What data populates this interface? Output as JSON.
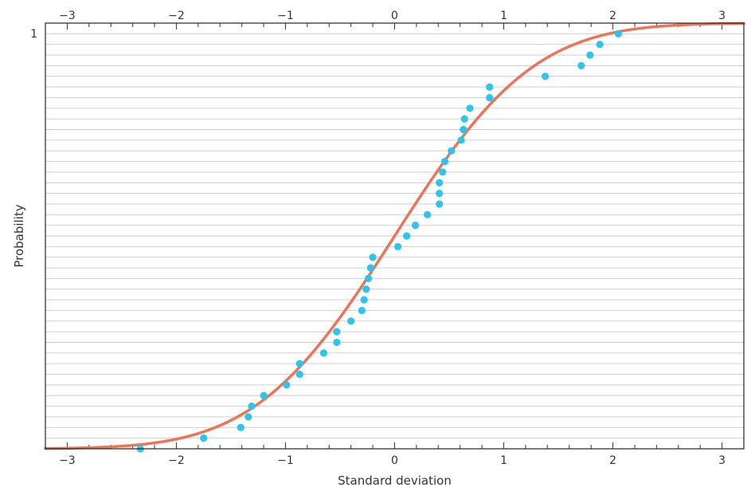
{
  "chart_data": {
    "type": "scatter",
    "title": "",
    "xlabel": "Standard deviation",
    "ylabel": "Probability",
    "xlim": [
      -3.2,
      3.2
    ],
    "ylim": [
      0,
      1
    ],
    "x_ticks": [
      -3,
      -2,
      -1,
      0,
      1,
      2,
      3
    ],
    "x_tick_labels": [
      "−3",
      "−2",
      "−1",
      "0",
      "1",
      "2",
      "3"
    ],
    "y_tick_labels": [
      "1"
    ],
    "gridlines": "horizontal",
    "gridline_count": 40,
    "legend": "none",
    "curve": {
      "type": "line",
      "description_function": "normal-cdf",
      "color": "#ec7458"
    },
    "points": {
      "color": "#2ec4ec",
      "values": [
        [
          -2.33,
          0.0
        ],
        [
          -1.75,
          0.025
        ],
        [
          -1.41,
          0.05
        ],
        [
          -1.34,
          0.075
        ],
        [
          -1.31,
          0.1
        ],
        [
          -1.2,
          0.125
        ],
        [
          -0.99,
          0.15
        ],
        [
          -0.87,
          0.175
        ],
        [
          -0.87,
          0.2
        ],
        [
          -0.65,
          0.225
        ],
        [
          -0.53,
          0.25
        ],
        [
          -0.53,
          0.275
        ],
        [
          -0.4,
          0.3
        ],
        [
          -0.3,
          0.325
        ],
        [
          -0.28,
          0.35
        ],
        [
          -0.26,
          0.375
        ],
        [
          -0.24,
          0.4
        ],
        [
          -0.22,
          0.425
        ],
        [
          -0.2,
          0.45
        ],
        [
          0.03,
          0.475
        ],
        [
          0.11,
          0.5
        ],
        [
          0.19,
          0.525
        ],
        [
          0.3,
          0.55
        ],
        [
          0.41,
          0.575
        ],
        [
          0.41,
          0.6
        ],
        [
          0.41,
          0.625
        ],
        [
          0.44,
          0.65
        ],
        [
          0.46,
          0.675
        ],
        [
          0.52,
          0.7
        ],
        [
          0.61,
          0.725
        ],
        [
          0.63,
          0.75
        ],
        [
          0.64,
          0.775
        ],
        [
          0.69,
          0.8
        ],
        [
          0.87,
          0.825
        ],
        [
          0.87,
          0.85
        ],
        [
          1.38,
          0.875
        ],
        [
          1.71,
          0.9
        ],
        [
          1.79,
          0.925
        ],
        [
          1.88,
          0.95
        ],
        [
          2.05,
          0.975
        ]
      ]
    }
  }
}
